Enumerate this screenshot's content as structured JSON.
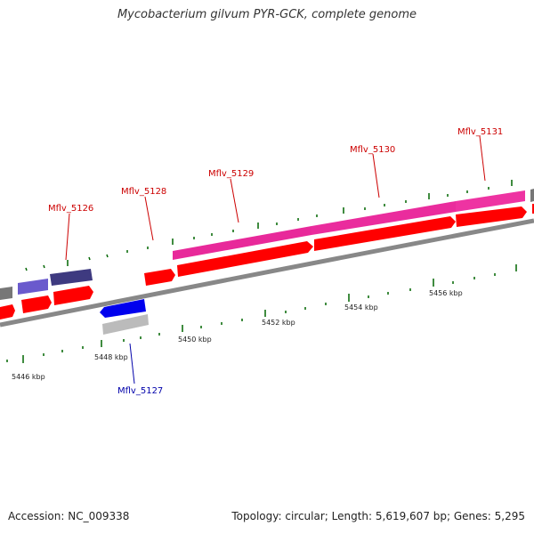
{
  "title": "Mycobacterium gilvum PYR-GCK, complete genome",
  "footer": {
    "accession": "Accession: NC_009338",
    "summary": "Topology: circular; Length: 5,619,607 bp; Genes: 5,295"
  },
  "scale_labels": [
    "5446 kbp",
    "5448 kbp",
    "5450 kbp",
    "5452 kbp",
    "5454 kbp",
    "5456 kbp"
  ],
  "gene_labels": [
    {
      "name": "Mflv_5126",
      "color": "#cc0000"
    },
    {
      "name": "Mflv_5127",
      "color": "#0000aa"
    },
    {
      "name": "Mflv_5128",
      "color": "#cc0000"
    },
    {
      "name": "Mflv_5129",
      "color": "#cc0000"
    },
    {
      "name": "Mflv_5130",
      "color": "#cc0000"
    },
    {
      "name": "Mflv_5131",
      "color": "#cc0000"
    }
  ],
  "colors": {
    "cds_forward": "#ff0000",
    "cds_reverse": "#0000ff",
    "pink_feature": "#ee2aa0",
    "purple_feature": "#6655cc",
    "dark_purple_feature": "#443d88",
    "grey_feature": "#bbbbbb",
    "backbone": "#888888",
    "tick": "#006600"
  }
}
